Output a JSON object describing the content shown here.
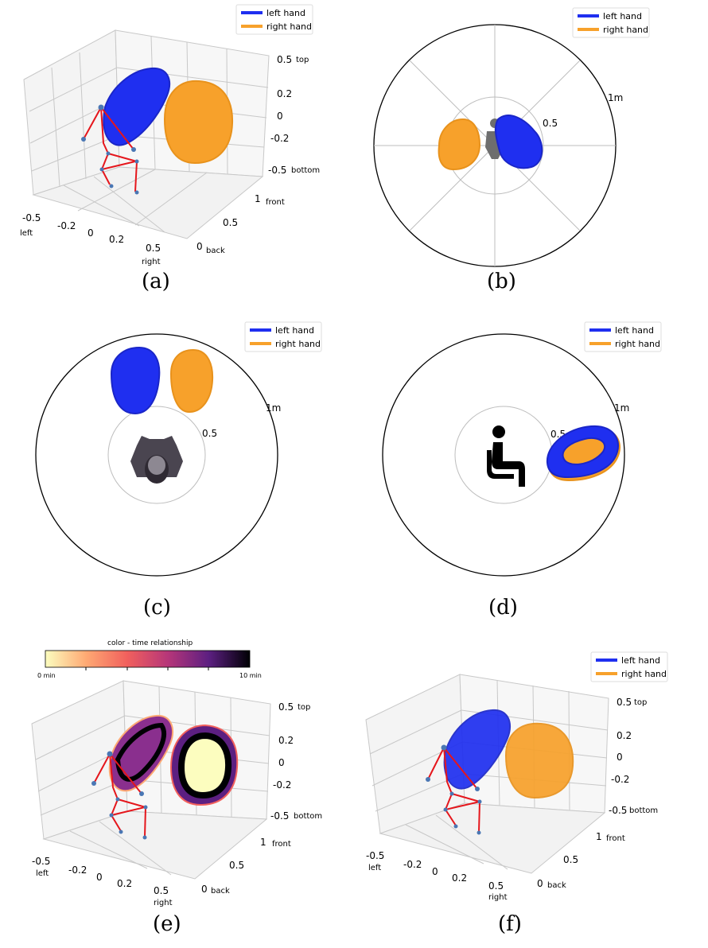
{
  "legend": {
    "left": "left hand",
    "right": "right hand"
  },
  "colors": {
    "left": "#1f2ff0",
    "right": "#f7a12b",
    "skeleton": "#e5161c",
    "joint": "#4a77b4",
    "grid": "#bdbdbd"
  },
  "panels": [
    "(a)",
    "(b)",
    "(c)",
    "(d)",
    "(e)",
    "(f)"
  ],
  "axes3d": {
    "z_ticks": [
      "0.5",
      "0.2",
      "0",
      "-0.2",
      "-0.5"
    ],
    "z_top": "top",
    "z_bottom": "bottom",
    "x_ticks": [
      "-0.5",
      "-0.2",
      "0",
      "0.2",
      "0.5"
    ],
    "x_left": "left",
    "x_right": "right",
    "y_ticks": [
      "1",
      "0.5",
      "0"
    ],
    "y_front": "front",
    "y_back": "back"
  },
  "polar": {
    "r_outer": "1m",
    "r_inner": "0.5"
  },
  "colorbar": {
    "title": "color - time relationship",
    "min": "0 min",
    "max": "10 min"
  },
  "chart_data": [
    {
      "type": "scatter",
      "panel": "(a)",
      "view": "3d",
      "series": [
        {
          "name": "left hand"
        },
        {
          "name": "right hand"
        }
      ],
      "zlim": [
        -0.5,
        0.5
      ],
      "xlim": [
        -0.5,
        0.5
      ],
      "ylim": [
        0,
        1
      ]
    },
    {
      "type": "scatter",
      "panel": "(b)",
      "view": "polar-front",
      "series": [
        {
          "name": "left hand"
        },
        {
          "name": "right hand"
        }
      ],
      "rlim": [
        0,
        1
      ]
    },
    {
      "type": "scatter",
      "panel": "(c)",
      "view": "polar-top",
      "series": [
        {
          "name": "left hand"
        },
        {
          "name": "right hand"
        }
      ],
      "rlim": [
        0,
        1
      ]
    },
    {
      "type": "scatter",
      "panel": "(d)",
      "view": "polar-side",
      "series": [
        {
          "name": "left hand"
        },
        {
          "name": "right hand"
        }
      ],
      "rlim": [
        0,
        1
      ]
    },
    {
      "type": "scatter",
      "panel": "(e)",
      "view": "3d",
      "color_scale": [
        0,
        10
      ],
      "zlim": [
        -0.5,
        0.5
      ],
      "xlim": [
        -0.5,
        0.5
      ],
      "ylim": [
        0,
        1
      ]
    },
    {
      "type": "scatter",
      "panel": "(f)",
      "view": "3d",
      "series": [
        {
          "name": "left hand"
        },
        {
          "name": "right hand"
        }
      ],
      "zlim": [
        -0.5,
        0.5
      ],
      "xlim": [
        -0.5,
        0.5
      ],
      "ylim": [
        0,
        1
      ]
    }
  ]
}
